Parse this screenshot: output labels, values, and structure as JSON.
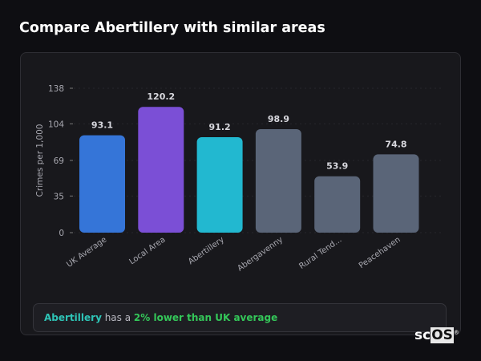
{
  "header": {
    "title": "Compare Abertillery with similar areas"
  },
  "chart_data": {
    "type": "bar",
    "categories": [
      "UK Average",
      "Local Area",
      "Abertillery",
      "Abergavenny",
      "Rural Tend...",
      "Peacehaven"
    ],
    "values": [
      93.1,
      120.2,
      91.2,
      98.9,
      53.9,
      74.8
    ],
    "data_labels": [
      "93.1",
      "120.2",
      "91.2",
      "98.9",
      "53.9",
      "74.8"
    ],
    "colors": [
      "#3575d8",
      "#7b4fd6",
      "#22b8d0",
      "#5a6578",
      "#5a6578",
      "#5a6578"
    ],
    "ylabel": "Crimes per 1,000",
    "yticks": [
      0,
      35,
      69,
      104,
      138
    ],
    "ylim": [
      0,
      138
    ],
    "grid": true
  },
  "summary": {
    "area": "Abertillery",
    "middle": " has a ",
    "comparison": "2% lower than UK average"
  },
  "logo": {
    "text_a": "sc",
    "text_b": "OS",
    "mark": "®"
  }
}
